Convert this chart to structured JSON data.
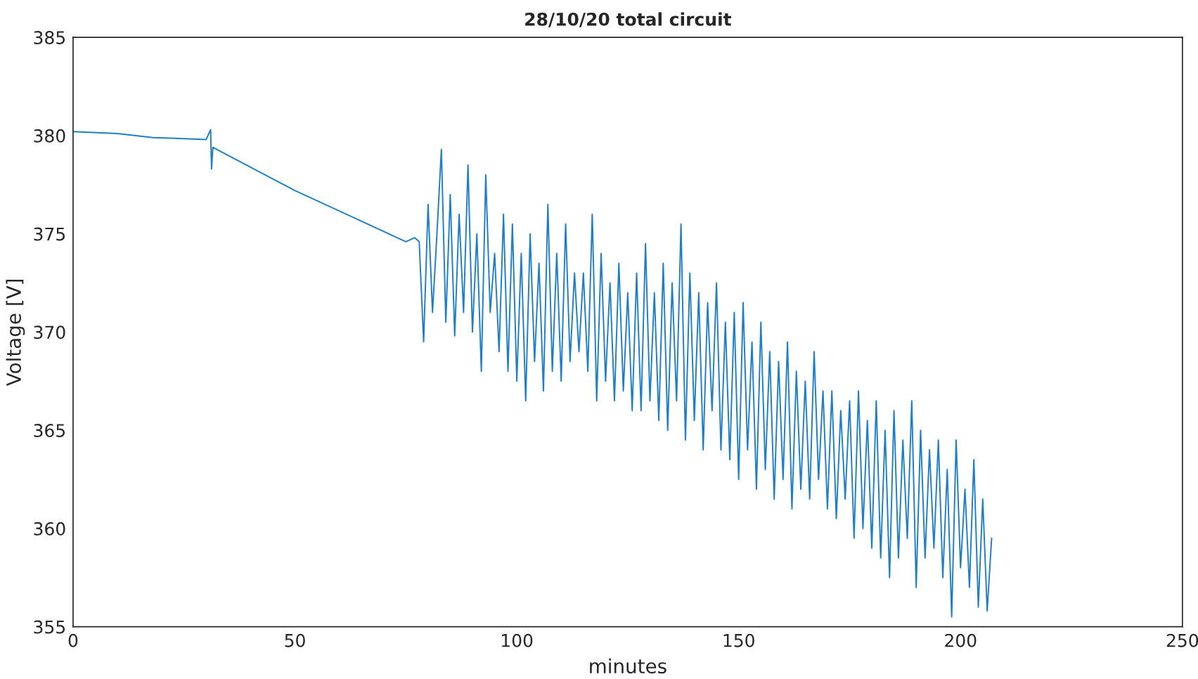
{
  "chart_data": {
    "type": "line",
    "title": "28/10/20 total circuit",
    "xlabel": "minutes",
    "ylabel": "Voltage [V]",
    "xlim": [
      0,
      250
    ],
    "xticks": [
      0,
      50,
      100,
      150,
      200,
      250
    ],
    "ylim": [
      355,
      385
    ],
    "yticks": [
      355,
      360,
      365,
      370,
      375,
      380,
      385
    ],
    "grid": false,
    "series": [
      {
        "color": "#1f7fc6",
        "x": [
          0,
          10,
          18,
          30,
          31,
          31.2,
          31.5,
          50,
          75,
          77,
          78,
          79,
          80,
          81,
          82,
          83,
          84,
          85,
          86,
          87,
          88,
          89,
          90,
          91,
          92,
          93,
          94,
          95,
          96,
          97,
          98,
          99,
          100,
          101,
          102,
          103,
          104,
          105,
          106,
          107,
          108,
          109,
          110,
          111,
          112,
          113,
          114,
          115,
          116,
          117,
          118,
          119,
          120,
          121,
          122,
          123,
          124,
          125,
          126,
          127,
          128,
          129,
          130,
          131,
          132,
          133,
          134,
          135,
          136,
          137,
          138,
          139,
          140,
          141,
          142,
          143,
          144,
          145,
          146,
          147,
          148,
          149,
          150,
          151,
          152,
          153,
          154,
          155,
          156,
          157,
          158,
          159,
          160,
          161,
          162,
          163,
          164,
          165,
          166,
          167,
          168,
          169,
          170,
          171,
          172,
          173,
          174,
          175,
          176,
          177,
          178,
          179,
          180,
          181,
          182,
          183,
          184,
          185,
          186,
          187,
          188,
          189,
          190,
          191,
          192,
          193,
          194,
          195,
          196,
          197,
          198,
          199,
          200,
          201,
          202,
          203,
          204,
          205,
          206,
          207
        ],
        "values": [
          380.2,
          380.1,
          379.9,
          379.8,
          380.3,
          378.3,
          379.4,
          377.2,
          374.6,
          374.8,
          374.6,
          369.5,
          376.5,
          371,
          375,
          379.3,
          370.5,
          377,
          369.8,
          376,
          371,
          378.5,
          370,
          375,
          368,
          378,
          371,
          374,
          369,
          376,
          368,
          375.5,
          367.5,
          374,
          366.5,
          375,
          368.5,
          373.5,
          367,
          376.5,
          368,
          374,
          367.5,
          375.5,
          368.5,
          373,
          369,
          373,
          368,
          376,
          366.5,
          374,
          367.5,
          372.5,
          366.5,
          373.5,
          367,
          372,
          366,
          373,
          366,
          374.5,
          366.5,
          372,
          365.5,
          373.5,
          365,
          372.5,
          366.5,
          375.5,
          364.5,
          373,
          365.5,
          372,
          364,
          371.5,
          366,
          372.5,
          364,
          370.5,
          363.5,
          371,
          362.5,
          371.5,
          364,
          369.5,
          362,
          370.5,
          363,
          369,
          361.5,
          368.5,
          362.5,
          369.5,
          361,
          368,
          362,
          367.5,
          361.5,
          369,
          362.5,
          367,
          361,
          367,
          360.5,
          366,
          361.5,
          366.5,
          359.5,
          367,
          360,
          365.5,
          359,
          366.5,
          358.5,
          365,
          357.5,
          366,
          358.5,
          364.5,
          359.5,
          366.5,
          357,
          365,
          358.5,
          364,
          359,
          364.5,
          357.5,
          363,
          355.5,
          364.5,
          358,
          362,
          357,
          363.5,
          356,
          361.5,
          355.8,
          359.5
        ]
      }
    ]
  }
}
